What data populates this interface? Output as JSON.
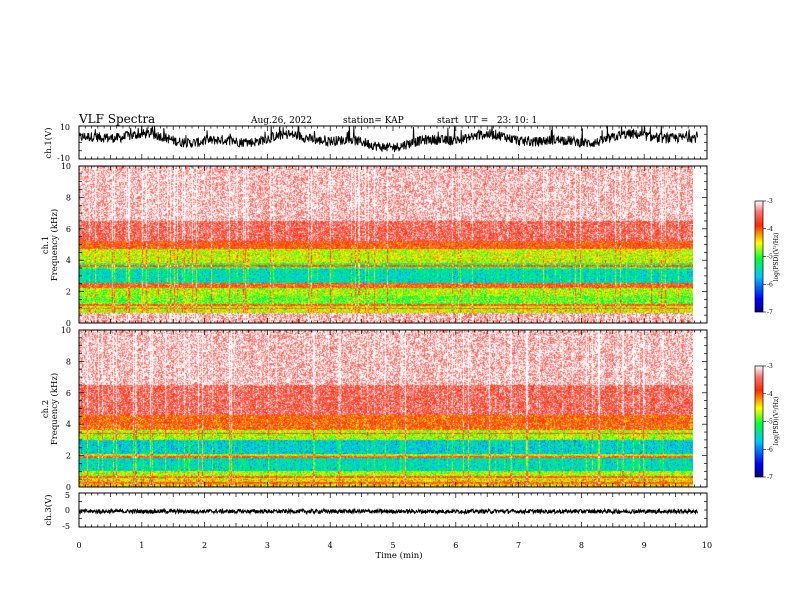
{
  "header": {
    "title": "VLF Spectra",
    "date": "Aug.26, 2022",
    "station": "station= KAP",
    "start": "start  UT =   23: 10: 1"
  },
  "colorbar": {
    "label": "log(PSD)(V²/Hz)",
    "ticks": [
      "-3",
      "-4",
      "-5",
      "-6",
      "-7"
    ]
  },
  "chart_data": [
    {
      "type": "line",
      "name": "ch.1 waveform",
      "ylabel": "ch.1(V)",
      "ylim": [
        -10,
        10
      ],
      "yticks": [
        "10",
        "-10"
      ],
      "xlim": [
        0,
        10
      ],
      "x_end_min": 9.85,
      "approx_range_v": [
        -7,
        10
      ],
      "series_color": "#000000"
    },
    {
      "type": "heatmap",
      "name": "ch.1 spectrogram",
      "ylabel_top": "ch.1",
      "ylabel": "Frequency (kHz)",
      "ylim": [
        0,
        10
      ],
      "yticks": [
        "0",
        "2",
        "4",
        "6",
        "8",
        "10"
      ],
      "xlim": [
        0,
        10
      ],
      "colorscale": [
        "#0000b4",
        "#00c8ff",
        "#00ff33",
        "#ffff00",
        "#ff2a00",
        "#ffffff"
      ],
      "colorscale_range": [
        -7,
        -3
      ],
      "bands_khz": [
        {
          "f0": 0.0,
          "f1": 0.6,
          "level": -3.2
        },
        {
          "f0": 0.6,
          "f1": 1.2,
          "level": -4.6
        },
        {
          "f0": 1.2,
          "f1": 1.7,
          "level": -4.9
        },
        {
          "f0": 1.7,
          "f1": 2.2,
          "level": -4.7
        },
        {
          "f0": 2.2,
          "f1": 2.5,
          "level": -4.0
        },
        {
          "f0": 2.5,
          "f1": 3.4,
          "level": -5.5
        },
        {
          "f0": 3.4,
          "f1": 3.8,
          "level": -5.1
        },
        {
          "f0": 3.8,
          "f1": 4.7,
          "level": -4.6
        },
        {
          "f0": 4.7,
          "f1": 5.2,
          "level": -3.9
        },
        {
          "f0": 5.2,
          "f1": 6.5,
          "level": -3.5
        },
        {
          "f0": 6.5,
          "f1": 10.0,
          "level": -3.15
        }
      ],
      "lines_khz": [
        0.3,
        0.5,
        0.9,
        1.1,
        2.25,
        2.45,
        3.6,
        4.8,
        5.6,
        6.4,
        6.9
      ]
    },
    {
      "type": "heatmap",
      "name": "ch.2 spectrogram",
      "ylabel_top": "ch.2",
      "ylabel": "Frequency (kHz)",
      "ylim": [
        0,
        10
      ],
      "yticks": [
        "0",
        "2",
        "4",
        "6",
        "8",
        "10"
      ],
      "xlim": [
        0,
        10
      ],
      "colorscale": [
        "#0000b4",
        "#00c8ff",
        "#00ff33",
        "#ffff00",
        "#ff2a00",
        "#ffffff"
      ],
      "colorscale_range": [
        -7,
        -3
      ],
      "bands_khz": [
        {
          "f0": 0.0,
          "f1": 0.5,
          "level": -4.4
        },
        {
          "f0": 0.5,
          "f1": 1.0,
          "level": -4.7
        },
        {
          "f0": 1.0,
          "f1": 1.8,
          "level": -5.5
        },
        {
          "f0": 1.8,
          "f1": 2.1,
          "level": -4.6
        },
        {
          "f0": 2.1,
          "f1": 3.0,
          "level": -5.6
        },
        {
          "f0": 3.0,
          "f1": 3.6,
          "level": -4.7
        },
        {
          "f0": 3.6,
          "f1": 4.6,
          "level": -4.0
        },
        {
          "f0": 4.6,
          "f1": 6.5,
          "level": -3.5
        },
        {
          "f0": 6.5,
          "f1": 10.0,
          "level": -3.15
        }
      ],
      "lines_khz": [
        0.25,
        0.6,
        1.9,
        3.4,
        4.1
      ]
    },
    {
      "type": "line",
      "name": "ch.3 waveform",
      "ylabel": "ch.3(V)",
      "ylim": [
        -5,
        5
      ],
      "yticks": [
        "5",
        "0",
        "-5"
      ],
      "xlim": [
        0,
        10
      ],
      "x_end_min": 9.85,
      "approx_range_v": [
        -1.0,
        0.2
      ],
      "series_color": "#000000"
    }
  ],
  "xaxis": {
    "label": "Time (min)",
    "ticks": [
      "0",
      "1",
      "2",
      "3",
      "4",
      "5",
      "6",
      "7",
      "8",
      "9",
      "10"
    ]
  }
}
